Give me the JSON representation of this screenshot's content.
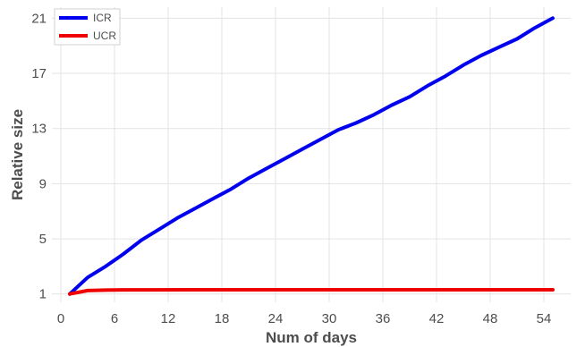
{
  "chart_data": {
    "type": "line",
    "title": "",
    "xlabel": "Num of days",
    "ylabel": "Relative size",
    "xlim": [
      -1,
      57
    ],
    "ylim": [
      0.4,
      21.8
    ],
    "xticks": [
      0,
      6,
      12,
      18,
      24,
      30,
      36,
      42,
      48,
      54
    ],
    "yticks": [
      1,
      5,
      9,
      13,
      17,
      21
    ],
    "grid": true,
    "legend_position": "top-left",
    "series": [
      {
        "name": "ICR",
        "color": "#0000ee",
        "x": [
          1,
          3,
          5,
          7,
          9,
          11,
          13,
          15,
          17,
          19,
          21,
          23,
          25,
          27,
          29,
          31,
          33,
          35,
          37,
          39,
          41,
          43,
          45,
          47,
          49,
          51,
          53,
          55
        ],
        "y": [
          1.0,
          2.2,
          3.0,
          3.9,
          4.9,
          5.7,
          6.5,
          7.2,
          7.9,
          8.6,
          9.4,
          10.1,
          10.8,
          11.5,
          12.2,
          12.9,
          13.4,
          14.0,
          14.7,
          15.3,
          16.1,
          16.8,
          17.6,
          18.3,
          18.9,
          19.5,
          20.3,
          21.0
        ]
      },
      {
        "name": "UCR",
        "color": "#ee0000",
        "x": [
          1,
          3,
          5,
          7,
          10,
          15,
          20,
          30,
          40,
          50,
          55
        ],
        "y": [
          1.0,
          1.25,
          1.28,
          1.3,
          1.3,
          1.31,
          1.31,
          1.31,
          1.31,
          1.31,
          1.31
        ]
      }
    ]
  }
}
